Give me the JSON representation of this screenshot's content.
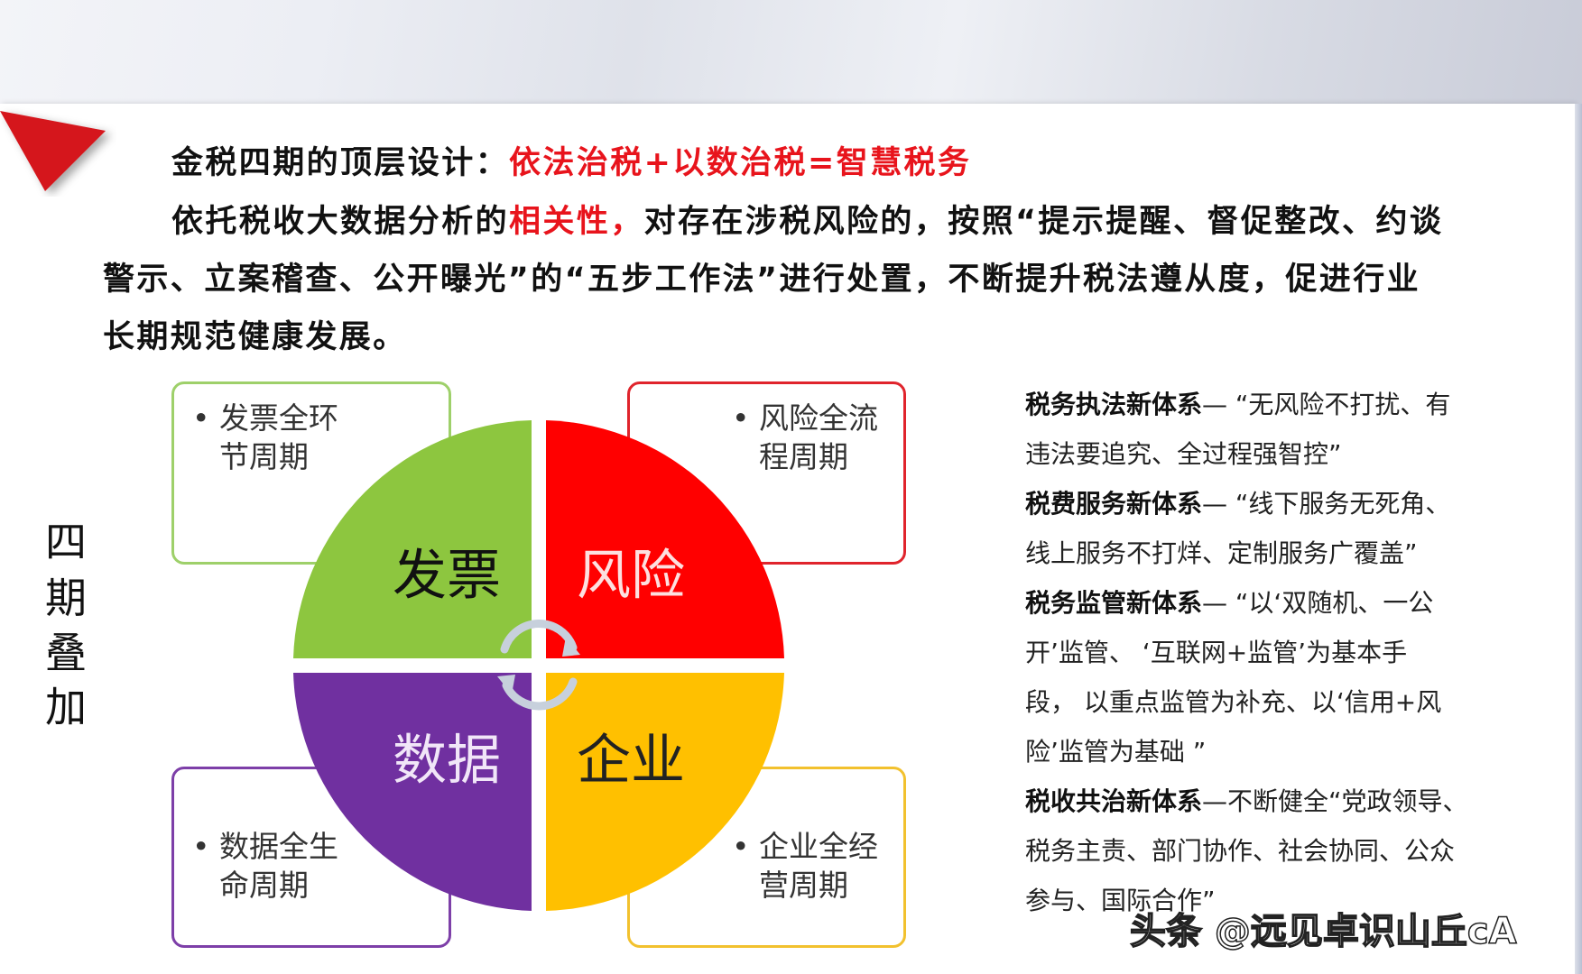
{
  "title": {
    "prefix": "金税四期的顶层设计：",
    "highlight": "依法治税+以数治税=智慧税务"
  },
  "paragraph": {
    "line1_a": "依托税收大数据分析的",
    "line1_red": "相关性，",
    "line1_b": "对存在涉税风险的，按照“提示提醒、督促整改、约谈",
    "line2": "警示、立案稽查、公开曝光”的“五步工作法”进行处置，不断提升税法遵从度，促进行业",
    "line3": "长期规范健康发展。"
  },
  "vertical_label": [
    "四",
    "期",
    "叠",
    "加"
  ],
  "diagram": {
    "quadrants": [
      {
        "label": "发票",
        "color": "#8dc63f",
        "bullet": [
          "发票全环",
          "节周期"
        ],
        "border": "#9ed06a"
      },
      {
        "label": "风险",
        "color": "#ff0000",
        "bullet": [
          "风险全流",
          "程周期"
        ],
        "border": "#e0242c"
      },
      {
        "label": "数据",
        "color": "#7030a0",
        "bullet": [
          "数据全生",
          "命周期"
        ],
        "border": "#7d3fa8"
      },
      {
        "label": "企业",
        "color": "#ffc000",
        "bullet": [
          "企业全经",
          "营周期"
        ],
        "border": "#f2c12e"
      }
    ],
    "bullet_symbol": "•"
  },
  "systems": [
    {
      "bold": "税务执法新体系",
      "lines": [
        "— “无风险不打扰、有",
        "违法要追究、全过程强智控”"
      ]
    },
    {
      "bold": "税费服务新体系",
      "lines": [
        "— “线下服务无死角、",
        "线上服务不打烊、定制服务广覆盖”"
      ]
    },
    {
      "bold": "税务监管新体系",
      "lines": [
        "— “以‘双随机、一公",
        "开’监管、 ‘互联网+监管’为基本手",
        "段， 以重点监管为补充、以‘信用+风",
        "险’监管为基础 ”"
      ]
    },
    {
      "bold": "税收共治新体系",
      "lines": [
        "—不断健全“党政领导、",
        "税务主责、部门协作、社会协同、公众",
        "参与、国际合作”"
      ]
    }
  ],
  "watermark": "头条 @远见卓识山丘cA"
}
